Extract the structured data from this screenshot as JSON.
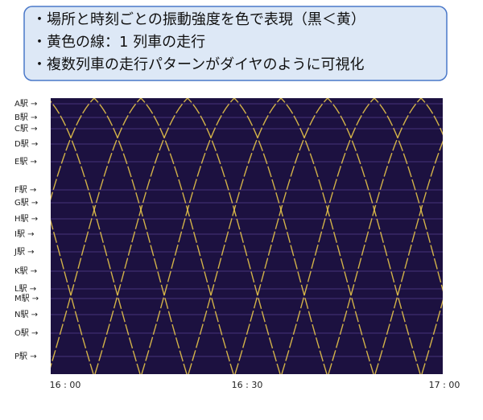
{
  "callout": {
    "lines": [
      "・場所と時刻ごとの振動強度を色で表現（黒＜黄）",
      "・黄色の線：1 列車の走行",
      "・複数列車の走行パターンがダイヤのように可視化"
    ]
  },
  "figure": {
    "stations": [
      "A駅 →",
      "B駅 →",
      "C駅 →",
      "D駅 →",
      "E駅 →",
      "F駅 →",
      "G駅 →",
      "H駅 →",
      "I駅 →",
      "J駅 →",
      "K駅 →",
      "L駅 →",
      "M駅 →",
      "N駅 →",
      "O駅 →",
      "P駅 →"
    ],
    "time_labels": [
      "16 : 00",
      "16 : 30",
      "17 : 00"
    ]
  }
}
